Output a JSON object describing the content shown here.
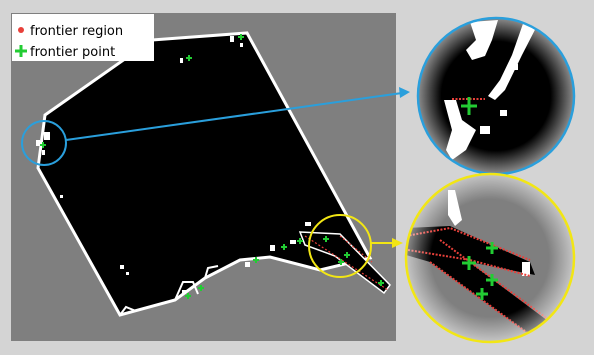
{
  "legend": {
    "frontier_region_label": "frontier region",
    "frontier_point_label": "frontier point"
  },
  "colors": {
    "frame_background": "#d4d4d4",
    "unknown_gray": "#7f7f7f",
    "free_space": "#000000",
    "obstacle": "#ffffff",
    "frontier_region": "#e8403a",
    "frontier_point": "#22cc33",
    "callout_blue": "#2a9fdc",
    "callout_yellow": "#f2e614"
  }
}
